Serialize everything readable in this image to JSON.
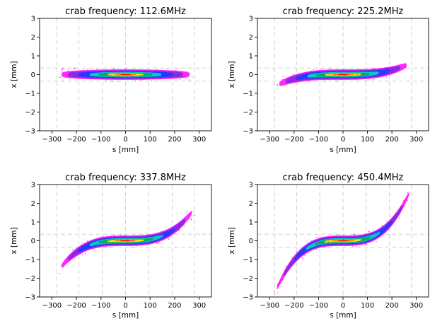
{
  "chart_data": [
    {
      "type": "heatmap",
      "title": "crab frequency: 112.6MHz",
      "xlabel": "s [mm]",
      "ylabel": "x [mm]",
      "xlim": [
        -350,
        350
      ],
      "ylim": [
        -3,
        3
      ],
      "xticks": [
        -300,
        -200,
        -100,
        0,
        100,
        200,
        300
      ],
      "yticks": [
        -3,
        -2,
        -1,
        0,
        1,
        2,
        3
      ],
      "grid": "dashed",
      "colormap": [
        "#ff00ff",
        "#8a2be2",
        "#1e3cff",
        "#00cccc",
        "#00b050",
        "#ffe000",
        "#ff8000",
        "#ff0000"
      ],
      "bunch": {
        "s_extent": [
          -260,
          260
        ],
        "x_sigma": 0.14,
        "x_halo": 0.28,
        "curvature_x_at_250mm": 0.0
      },
      "reference_lines_x": [
        0.35,
        -0.35
      ],
      "reference_lines_s": [
        -280,
        -190,
        -95,
        0,
        95,
        190,
        280
      ]
    },
    {
      "type": "heatmap",
      "title": "crab frequency: 225.2MHz",
      "xlabel": "s [mm]",
      "ylabel": "x [mm]",
      "xlim": [
        -350,
        350
      ],
      "ylim": [
        -3,
        3
      ],
      "xticks": [
        -300,
        -200,
        -100,
        0,
        100,
        200,
        300
      ],
      "yticks": [
        -3,
        -2,
        -1,
        0,
        1,
        2,
        3
      ],
      "grid": "dashed",
      "colormap": [
        "#ff00ff",
        "#8a2be2",
        "#1e3cff",
        "#00cccc",
        "#00b050",
        "#ffe000",
        "#ff8000",
        "#ff0000"
      ],
      "bunch": {
        "s_extent": [
          -260,
          260
        ],
        "x_sigma": 0.14,
        "x_halo": 0.28,
        "curvature_x_at_250mm": 0.45
      },
      "reference_lines_x": [
        0.35,
        -0.35
      ],
      "reference_lines_s": [
        -280,
        -190,
        -95,
        0,
        95,
        190,
        280
      ]
    },
    {
      "type": "heatmap",
      "title": "crab frequency: 337.8MHz",
      "xlabel": "s [mm]",
      "ylabel": "x [mm]",
      "xlim": [
        -350,
        350
      ],
      "ylim": [
        -3,
        3
      ],
      "xticks": [
        -300,
        -200,
        -100,
        0,
        100,
        200,
        300
      ],
      "yticks": [
        -3,
        -2,
        -1,
        0,
        1,
        2,
        3
      ],
      "grid": "dashed",
      "colormap": [
        "#ff00ff",
        "#8a2be2",
        "#1e3cff",
        "#00cccc",
        "#00b050",
        "#ffe000",
        "#ff8000",
        "#ff0000"
      ],
      "bunch": {
        "s_extent": [
          -260,
          270
        ],
        "x_sigma": 0.14,
        "x_halo": 0.28,
        "curvature_x_at_250mm": 1.2
      },
      "reference_lines_x": [
        0.35,
        -0.35
      ],
      "reference_lines_s": [
        -280,
        -190,
        -95,
        0,
        95,
        190,
        280
      ]
    },
    {
      "type": "heatmap",
      "title": "crab frequency: 450.4MHz",
      "xlabel": "s [mm]",
      "ylabel": "x [mm]",
      "xlim": [
        -350,
        350
      ],
      "ylim": [
        -3,
        3
      ],
      "xticks": [
        -300,
        -200,
        -100,
        0,
        100,
        200,
        300
      ],
      "yticks": [
        -3,
        -2,
        -1,
        0,
        1,
        2,
        3
      ],
      "grid": "dashed",
      "colormap": [
        "#ff00ff",
        "#8a2be2",
        "#1e3cff",
        "#00cccc",
        "#00b050",
        "#ffe000",
        "#ff8000",
        "#ff0000"
      ],
      "bunch": {
        "s_extent": [
          -270,
          270
        ],
        "x_sigma": 0.14,
        "x_halo": 0.28,
        "curvature_x_at_250mm": 2.0
      },
      "reference_lines_x": [
        0.35,
        -0.35
      ],
      "reference_lines_s": [
        -280,
        -190,
        -95,
        0,
        95,
        190,
        280
      ]
    }
  ]
}
